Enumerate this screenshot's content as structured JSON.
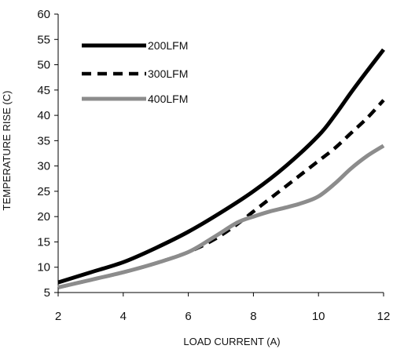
{
  "chart_data": {
    "type": "line",
    "title": "",
    "xlabel": "LOAD CURRENT (A)",
    "ylabel": "TEMPERATURE RISE (C)",
    "xlim": [
      2,
      12
    ],
    "ylim": [
      5,
      60
    ],
    "xticks": [
      2,
      4,
      6,
      8,
      10,
      12
    ],
    "yticks": [
      5,
      10,
      15,
      20,
      25,
      30,
      35,
      40,
      45,
      50,
      55,
      60
    ],
    "grid": false,
    "legend_position": "top-left",
    "series": [
      {
        "name": "200LFM",
        "style": "solid",
        "color": "#000000",
        "x": [
          2,
          3,
          4,
          5,
          6,
          7,
          8,
          9,
          10,
          10.5,
          11,
          11.5,
          12
        ],
        "y": [
          7,
          9,
          11,
          13.8,
          17,
          20.8,
          25,
          30,
          36,
          40,
          44.5,
          48.8,
          53
        ]
      },
      {
        "name": "300LFM",
        "style": "dashed",
        "color": "#000000",
        "x": [
          2,
          3,
          4,
          5,
          6,
          6.8,
          7.5,
          8,
          8.5,
          9,
          9.5,
          10,
          10.5,
          11,
          11.5,
          12
        ],
        "y": [
          6,
          7.5,
          9,
          10.8,
          13,
          15.5,
          18.5,
          21,
          23.5,
          26,
          28.5,
          31,
          33.5,
          36.5,
          39.5,
          43
        ]
      },
      {
        "name": "400LFM",
        "style": "solid",
        "color": "#8c8c8c",
        "x": [
          2,
          3,
          4,
          5,
          6,
          6.8,
          7.5,
          8,
          8.5,
          9,
          9.5,
          10,
          10.5,
          11,
          11.5,
          12
        ],
        "y": [
          6,
          7.5,
          9,
          10.8,
          13,
          16,
          18.8,
          20,
          21,
          21.8,
          22.7,
          24,
          26.5,
          29.5,
          32,
          34
        ]
      }
    ]
  }
}
